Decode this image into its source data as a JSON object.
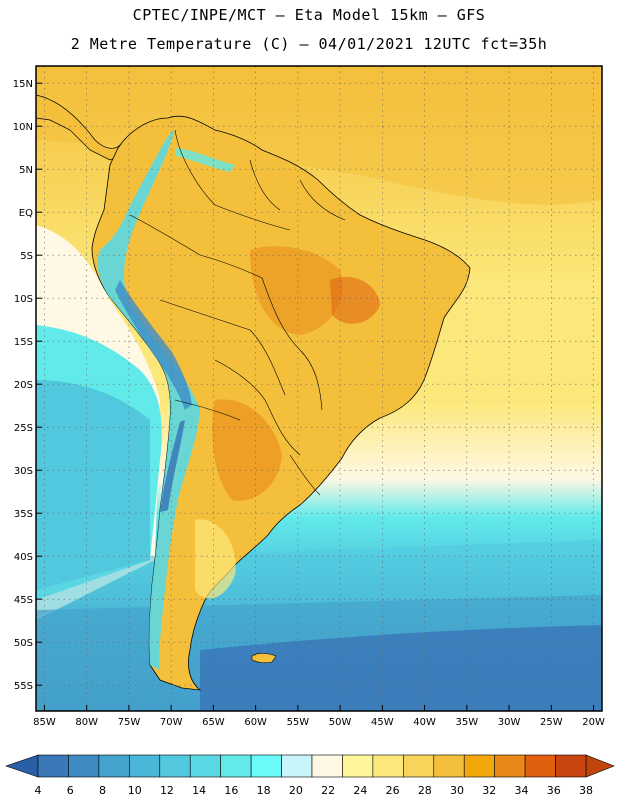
{
  "header": {
    "title_line1": "CPTEC/INPE/MCT –  Eta Model 15km – GFS",
    "title_line2": "2 Metre Temperature (C) – 04/01/2021 12UTC fct=35h"
  },
  "map": {
    "lon_range": [
      -86,
      -19
    ],
    "lat_range": [
      -58,
      17
    ],
    "lon_ticks": [
      {
        "value": -85,
        "label": "85W"
      },
      {
        "value": -80,
        "label": "80W"
      },
      {
        "value": -75,
        "label": "75W"
      },
      {
        "value": -70,
        "label": "70W"
      },
      {
        "value": -65,
        "label": "65W"
      },
      {
        "value": -60,
        "label": "60W"
      },
      {
        "value": -55,
        "label": "55W"
      },
      {
        "value": -50,
        "label": "50W"
      },
      {
        "value": -45,
        "label": "45W"
      },
      {
        "value": -40,
        "label": "40W"
      },
      {
        "value": -35,
        "label": "35W"
      },
      {
        "value": -30,
        "label": "30W"
      },
      {
        "value": -25,
        "label": "25W"
      },
      {
        "value": -20,
        "label": "20W"
      }
    ],
    "lat_ticks": [
      {
        "value": 15,
        "label": "15N"
      },
      {
        "value": 10,
        "label": "10N"
      },
      {
        "value": 5,
        "label": "5N"
      },
      {
        "value": 0,
        "label": "EQ"
      },
      {
        "value": -5,
        "label": "5S"
      },
      {
        "value": -10,
        "label": "10S"
      },
      {
        "value": -15,
        "label": "15S"
      },
      {
        "value": -20,
        "label": "20S"
      },
      {
        "value": -25,
        "label": "25S"
      },
      {
        "value": -30,
        "label": "30S"
      },
      {
        "value": -35,
        "label": "35S"
      },
      {
        "value": -40,
        "label": "40S"
      },
      {
        "value": -45,
        "label": "45S"
      },
      {
        "value": -50,
        "label": "50S"
      },
      {
        "value": -55,
        "label": "55S"
      }
    ]
  },
  "colorbar": {
    "labels": [
      "4",
      "6",
      "8",
      "10",
      "12",
      "14",
      "16",
      "18",
      "20",
      "22",
      "24",
      "26",
      "28",
      "30",
      "32",
      "34",
      "36",
      "38"
    ],
    "colors": [
      "#3a78b8",
      "#3f8cc4",
      "#44a2cc",
      "#4ab6d8",
      "#52c8de",
      "#5ad8e4",
      "#62eaea",
      "#6afafa",
      "#c8f4fc",
      "#fef8e4",
      "#fef49a",
      "#fce87a",
      "#f8d45a",
      "#f4c03c",
      "#f2a80c",
      "#e88818",
      "#e06010",
      "#c84410"
    ],
    "low_end_color": "#2a5fa6",
    "high_end_color": "#c0440c"
  },
  "colors": {
    "ocean_north": "#f8d45a",
    "land_warm": "#f4c03c",
    "cold_water": "#52c8de",
    "deep_cold": "#3a78b8"
  }
}
